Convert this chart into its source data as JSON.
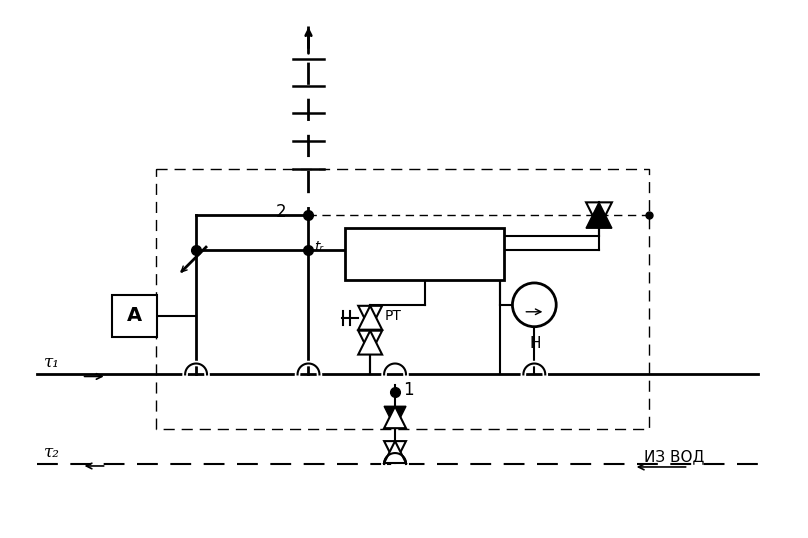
{
  "bg_color": "#ffffff",
  "line_color": "#000000",
  "lw": 1.5,
  "lw2": 2.0,
  "tau1_label": "τ₁",
  "tau2_label": "τ₂",
  "iz_vod_label": "ИЗ ВОД",
  "label_2": "2",
  "label_tr": "tᵣ",
  "label_H": "H",
  "label_A": "A",
  "label_PT": "PT",
  "label_1": "1"
}
